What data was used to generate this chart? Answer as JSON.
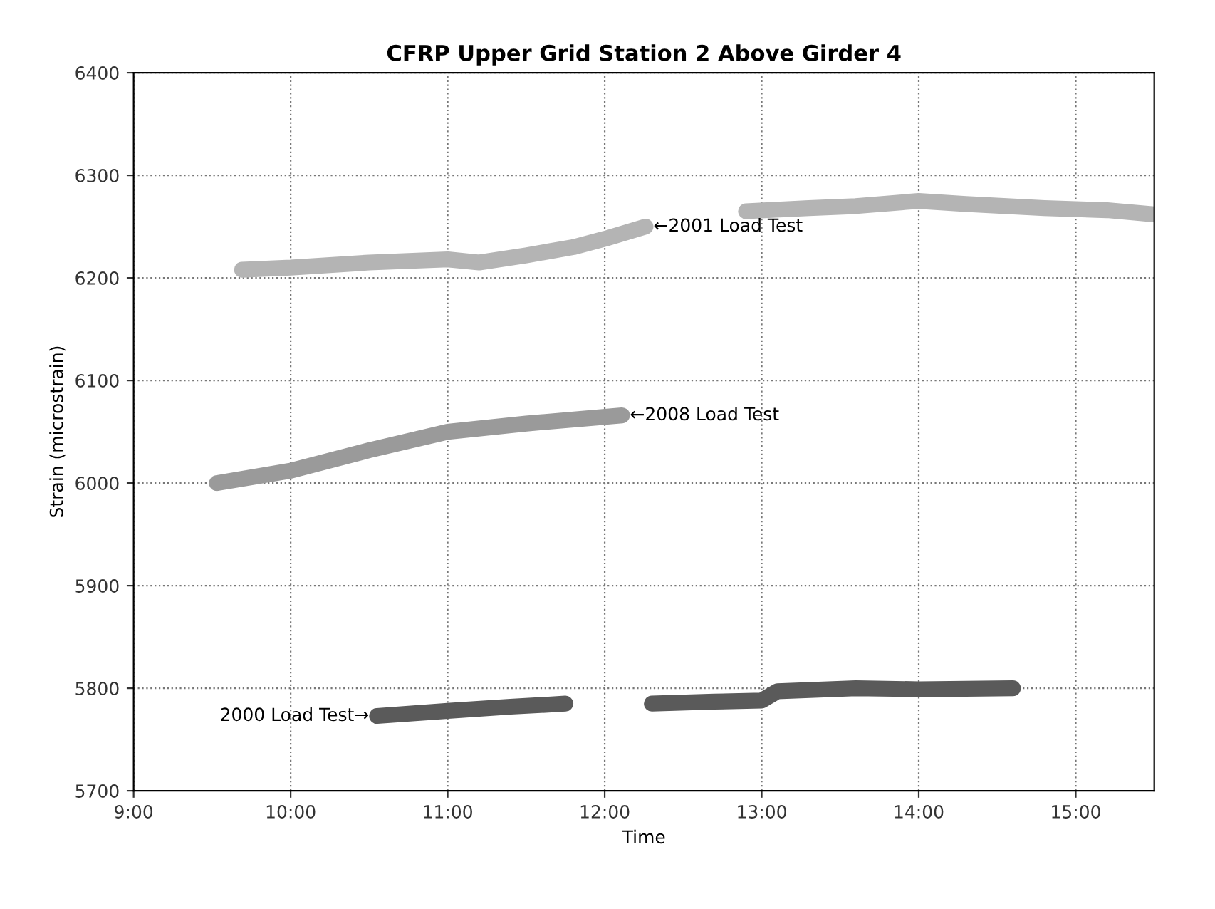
{
  "chart_data": {
    "type": "line",
    "title": "CFRP Upper Grid Station 2 Above Girder 4",
    "xlabel": "Time",
    "ylabel": "Strain (microstrain)",
    "xlim": [
      9,
      15.5
    ],
    "xticks": [
      {
        "value": 9,
        "label": "9:00"
      },
      {
        "value": 10,
        "label": "10:00"
      },
      {
        "value": 11,
        "label": "11:00"
      },
      {
        "value": 12,
        "label": "12:00"
      },
      {
        "value": 13,
        "label": "13:00"
      },
      {
        "value": 14,
        "label": "14:00"
      },
      {
        "value": 15,
        "label": "15:00"
      }
    ],
    "ylim": [
      5700,
      6400
    ],
    "yticks": [
      5700,
      5800,
      5900,
      6000,
      6100,
      6200,
      6300,
      6400
    ],
    "grid": true,
    "legend": false,
    "line_style": "solid",
    "series": [
      {
        "color": "#b4b4b4",
        "x": [
          9.69,
          10.0,
          10.5,
          11.0,
          11.2,
          11.5,
          11.8,
          12.0,
          12.26,
          12.27,
          12.9,
          13.3,
          13.6,
          14.0,
          14.3,
          14.8,
          15.2,
          15.5
        ],
        "values": [
          6208,
          6210,
          6215,
          6218,
          6215,
          6222,
          6230,
          6238,
          6250,
          null,
          6265,
          6268,
          6270,
          6275,
          6272,
          6268,
          6266,
          6262
        ]
      },
      {
        "color": "#9a9a9a",
        "x": [
          9.53,
          10.0,
          10.5,
          11.0,
          11.5,
          12.11
        ],
        "values": [
          6000,
          6012,
          6032,
          6050,
          6058,
          6066
        ]
      },
      {
        "color": "#5a5a5a",
        "x": [
          10.55,
          11.0,
          11.4,
          11.75,
          11.9,
          12.3,
          12.7,
          13.0,
          13.1,
          13.6,
          14.0,
          14.6
        ],
        "values": [
          5773,
          5778,
          5782,
          5785,
          null,
          5785,
          5787,
          5788,
          5797,
          5800,
          5799,
          5800
        ]
      }
    ],
    "annotations": [
      {
        "text": "←2001 Load Test",
        "x": 12.26,
        "y": 6250
      },
      {
        "text": "←2008 Load Test",
        "x": 12.11,
        "y": 6066
      },
      {
        "text": "2000 Load Test→",
        "x": 10.55,
        "y": 5773
      }
    ]
  }
}
